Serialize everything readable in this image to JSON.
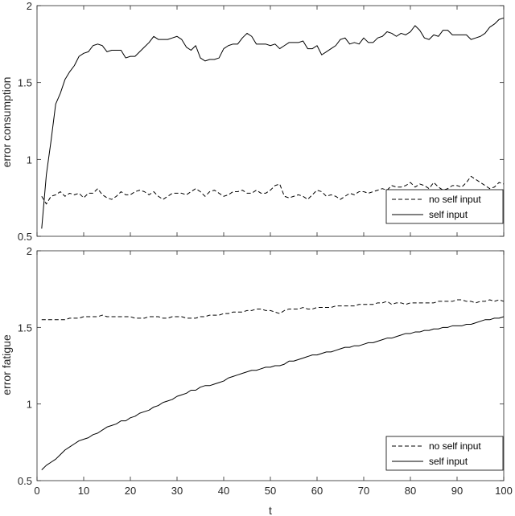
{
  "chart_data": [
    {
      "type": "line",
      "title": "",
      "xlabel": "",
      "ylabel": "error consumption",
      "xlim": [
        0,
        100
      ],
      "ylim": [
        0.5,
        2
      ],
      "xticks": [
        "0",
        "10",
        "20",
        "30",
        "40",
        "50",
        "60",
        "70",
        "80",
        "90",
        "100"
      ],
      "yticks": [
        "0.5",
        "1",
        "1.5",
        "2"
      ],
      "grid": false,
      "legend_position": "bottom-right",
      "series": [
        {
          "name": "no self input",
          "style": "dashed",
          "color": "#000000",
          "x": [
            1,
            2,
            3,
            4,
            5,
            6,
            7,
            8,
            9,
            10,
            11,
            12,
            13,
            14,
            15,
            16,
            17,
            18,
            19,
            20,
            21,
            22,
            23,
            24,
            25,
            26,
            27,
            28,
            29,
            30,
            31,
            32,
            33,
            34,
            35,
            36,
            37,
            38,
            39,
            40,
            41,
            42,
            43,
            44,
            45,
            46,
            47,
            48,
            49,
            50,
            51,
            52,
            53,
            54,
            55,
            56,
            57,
            58,
            59,
            60,
            61,
            62,
            63,
            64,
            65,
            66,
            67,
            68,
            69,
            70,
            71,
            72,
            73,
            74,
            75,
            76,
            77,
            78,
            79,
            80,
            81,
            82,
            83,
            84,
            85,
            86,
            87,
            88,
            89,
            90,
            91,
            92,
            93,
            94,
            95,
            96,
            97,
            98,
            99,
            100
          ],
          "y": [
            0.76,
            0.71,
            0.76,
            0.77,
            0.79,
            0.76,
            0.78,
            0.77,
            0.78,
            0.75,
            0.78,
            0.78,
            0.81,
            0.77,
            0.75,
            0.74,
            0.76,
            0.79,
            0.77,
            0.77,
            0.79,
            0.8,
            0.79,
            0.77,
            0.79,
            0.76,
            0.74,
            0.76,
            0.78,
            0.78,
            0.78,
            0.77,
            0.79,
            0.81,
            0.79,
            0.76,
            0.79,
            0.8,
            0.78,
            0.76,
            0.77,
            0.79,
            0.79,
            0.8,
            0.78,
            0.78,
            0.8,
            0.78,
            0.78,
            0.8,
            0.83,
            0.84,
            0.76,
            0.75,
            0.76,
            0.77,
            0.76,
            0.74,
            0.77,
            0.8,
            0.79,
            0.76,
            0.77,
            0.76,
            0.74,
            0.76,
            0.78,
            0.77,
            0.79,
            0.79,
            0.78,
            0.79,
            0.8,
            0.81,
            0.8,
            0.83,
            0.82,
            0.82,
            0.83,
            0.85,
            0.82,
            0.84,
            0.83,
            0.81,
            0.85,
            0.82,
            0.8,
            0.81,
            0.83,
            0.83,
            0.82,
            0.85,
            0.89,
            0.87,
            0.85,
            0.83,
            0.81,
            0.82,
            0.85,
            0.84
          ]
        },
        {
          "name": "self input",
          "style": "solid",
          "color": "#000000",
          "x": [
            1,
            2,
            3,
            4,
            5,
            6,
            7,
            8,
            9,
            10,
            11,
            12,
            13,
            14,
            15,
            16,
            17,
            18,
            19,
            20,
            21,
            22,
            23,
            24,
            25,
            26,
            27,
            28,
            29,
            30,
            31,
            32,
            33,
            34,
            35,
            36,
            37,
            38,
            39,
            40,
            41,
            42,
            43,
            44,
            45,
            46,
            47,
            48,
            49,
            50,
            51,
            52,
            53,
            54,
            55,
            56,
            57,
            58,
            59,
            60,
            61,
            62,
            63,
            64,
            65,
            66,
            67,
            68,
            69,
            70,
            71,
            72,
            73,
            74,
            75,
            76,
            77,
            78,
            79,
            80,
            81,
            82,
            83,
            84,
            85,
            86,
            87,
            88,
            89,
            90,
            91,
            92,
            93,
            94,
            95,
            96,
            97,
            98,
            99,
            100
          ],
          "y": [
            0.55,
            0.9,
            1.12,
            1.36,
            1.43,
            1.52,
            1.57,
            1.61,
            1.67,
            1.69,
            1.7,
            1.74,
            1.75,
            1.74,
            1.7,
            1.71,
            1.71,
            1.71,
            1.66,
            1.67,
            1.67,
            1.7,
            1.73,
            1.76,
            1.8,
            1.78,
            1.78,
            1.78,
            1.79,
            1.8,
            1.78,
            1.73,
            1.71,
            1.74,
            1.66,
            1.64,
            1.65,
            1.65,
            1.66,
            1.72,
            1.74,
            1.75,
            1.75,
            1.79,
            1.82,
            1.8,
            1.75,
            1.75,
            1.75,
            1.74,
            1.75,
            1.72,
            1.74,
            1.76,
            1.76,
            1.76,
            1.77,
            1.72,
            1.72,
            1.74,
            1.68,
            1.7,
            1.72,
            1.74,
            1.78,
            1.79,
            1.75,
            1.76,
            1.75,
            1.79,
            1.76,
            1.76,
            1.79,
            1.8,
            1.83,
            1.82,
            1.8,
            1.82,
            1.81,
            1.83,
            1.87,
            1.84,
            1.79,
            1.78,
            1.81,
            1.8,
            1.84,
            1.84,
            1.81,
            1.81,
            1.81,
            1.81,
            1.78,
            1.79,
            1.8,
            1.82,
            1.86,
            1.88,
            1.91,
            1.92
          ]
        }
      ]
    },
    {
      "type": "line",
      "title": "",
      "xlabel": "t",
      "ylabel": "error fatigue",
      "xlim": [
        0,
        100
      ],
      "ylim": [
        0.5,
        2
      ],
      "xticks": [
        "0",
        "10",
        "20",
        "30",
        "40",
        "50",
        "60",
        "70",
        "80",
        "90",
        "100"
      ],
      "yticks": [
        "0.5",
        "1",
        "1.5",
        "2"
      ],
      "grid": false,
      "legend_position": "bottom-right",
      "series": [
        {
          "name": "no self input",
          "style": "dashed",
          "color": "#000000",
          "x": [
            1,
            2,
            3,
            4,
            5,
            6,
            7,
            8,
            9,
            10,
            11,
            12,
            13,
            14,
            15,
            16,
            17,
            18,
            19,
            20,
            21,
            22,
            23,
            24,
            25,
            26,
            27,
            28,
            29,
            30,
            31,
            32,
            33,
            34,
            35,
            36,
            37,
            38,
            39,
            40,
            41,
            42,
            43,
            44,
            45,
            46,
            47,
            48,
            49,
            50,
            51,
            52,
            53,
            54,
            55,
            56,
            57,
            58,
            59,
            60,
            61,
            62,
            63,
            64,
            65,
            66,
            67,
            68,
            69,
            70,
            71,
            72,
            73,
            74,
            75,
            76,
            77,
            78,
            79,
            80,
            81,
            82,
            83,
            84,
            85,
            86,
            87,
            88,
            89,
            90,
            91,
            92,
            93,
            94,
            95,
            96,
            97,
            98,
            99,
            100
          ],
          "y": [
            1.55,
            1.55,
            1.55,
            1.55,
            1.55,
            1.55,
            1.56,
            1.56,
            1.56,
            1.57,
            1.57,
            1.57,
            1.57,
            1.58,
            1.57,
            1.57,
            1.57,
            1.57,
            1.57,
            1.57,
            1.56,
            1.56,
            1.56,
            1.57,
            1.57,
            1.57,
            1.56,
            1.56,
            1.57,
            1.57,
            1.57,
            1.56,
            1.56,
            1.56,
            1.57,
            1.57,
            1.58,
            1.58,
            1.58,
            1.59,
            1.59,
            1.6,
            1.6,
            1.6,
            1.61,
            1.61,
            1.62,
            1.62,
            1.61,
            1.61,
            1.6,
            1.59,
            1.61,
            1.62,
            1.62,
            1.62,
            1.63,
            1.62,
            1.62,
            1.63,
            1.63,
            1.63,
            1.63,
            1.64,
            1.64,
            1.64,
            1.64,
            1.64,
            1.65,
            1.65,
            1.65,
            1.65,
            1.66,
            1.66,
            1.67,
            1.65,
            1.66,
            1.66,
            1.65,
            1.66,
            1.66,
            1.66,
            1.66,
            1.66,
            1.66,
            1.67,
            1.67,
            1.67,
            1.67,
            1.68,
            1.68,
            1.67,
            1.67,
            1.66,
            1.67,
            1.67,
            1.68,
            1.67,
            1.68,
            1.67
          ]
        },
        {
          "name": "self input",
          "style": "solid",
          "color": "#000000",
          "x": [
            1,
            2,
            3,
            4,
            5,
            6,
            7,
            8,
            9,
            10,
            11,
            12,
            13,
            14,
            15,
            16,
            17,
            18,
            19,
            20,
            21,
            22,
            23,
            24,
            25,
            26,
            27,
            28,
            29,
            30,
            31,
            32,
            33,
            34,
            35,
            36,
            37,
            38,
            39,
            40,
            41,
            42,
            43,
            44,
            45,
            46,
            47,
            48,
            49,
            50,
            51,
            52,
            53,
            54,
            55,
            56,
            57,
            58,
            59,
            60,
            61,
            62,
            63,
            64,
            65,
            66,
            67,
            68,
            69,
            70,
            71,
            72,
            73,
            74,
            75,
            76,
            77,
            78,
            79,
            80,
            81,
            82,
            83,
            84,
            85,
            86,
            87,
            88,
            89,
            90,
            91,
            92,
            93,
            94,
            95,
            96,
            97,
            98,
            99,
            100
          ],
          "y": [
            0.57,
            0.6,
            0.62,
            0.64,
            0.67,
            0.7,
            0.72,
            0.74,
            0.76,
            0.77,
            0.78,
            0.8,
            0.81,
            0.83,
            0.85,
            0.86,
            0.87,
            0.89,
            0.89,
            0.91,
            0.92,
            0.94,
            0.95,
            0.96,
            0.98,
            0.99,
            1.01,
            1.02,
            1.03,
            1.05,
            1.06,
            1.07,
            1.09,
            1.09,
            1.11,
            1.12,
            1.12,
            1.13,
            1.14,
            1.15,
            1.17,
            1.18,
            1.19,
            1.2,
            1.21,
            1.22,
            1.22,
            1.23,
            1.24,
            1.24,
            1.25,
            1.25,
            1.26,
            1.28,
            1.28,
            1.29,
            1.3,
            1.31,
            1.32,
            1.32,
            1.33,
            1.34,
            1.34,
            1.35,
            1.36,
            1.37,
            1.37,
            1.38,
            1.38,
            1.39,
            1.4,
            1.4,
            1.41,
            1.42,
            1.43,
            1.43,
            1.44,
            1.45,
            1.46,
            1.46,
            1.47,
            1.47,
            1.48,
            1.48,
            1.49,
            1.49,
            1.5,
            1.5,
            1.51,
            1.51,
            1.51,
            1.52,
            1.52,
            1.53,
            1.54,
            1.55,
            1.55,
            1.56,
            1.56,
            1.57
          ]
        }
      ]
    }
  ]
}
